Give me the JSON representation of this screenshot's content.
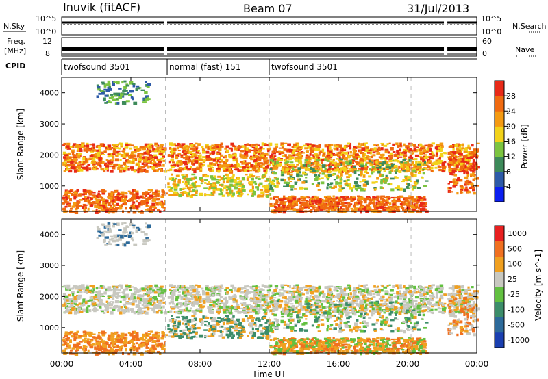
{
  "header": {
    "station": "Inuvik (fitACF)",
    "beam": "Beam 07",
    "date": "31/Jul/2013"
  },
  "summary": {
    "nsky_label": "N.Sky",
    "nsearch_label": "N.Search",
    "nsky_ticks": [
      "10^5",
      "10^0"
    ],
    "nsearch_ticks": [
      "10^5",
      "10^0"
    ],
    "freq_label_1": "Freq.",
    "freq_label_2": "[MHz]",
    "freq_ticks": [
      "12",
      "8"
    ],
    "nave_label": "Nave",
    "nave_ticks": [
      "60",
      "0"
    ],
    "cpid_label": "CPID",
    "modes": [
      {
        "label": "twofsound 3501",
        "start": 0.0,
        "end": 5.9
      },
      {
        "label": "normal (fast) 151",
        "start": 6.1,
        "end": 12.0
      },
      {
        "label": "twofsound 3501",
        "start": 12.0,
        "end": 24.0
      }
    ]
  },
  "x_ticks": [
    "00:00",
    "04:00",
    "08:00",
    "12:00",
    "16:00",
    "20:00",
    "00:00"
  ],
  "x_label": "Time UT",
  "y_ticks": [
    "1000",
    "2000",
    "3000",
    "4000"
  ],
  "y_label": "Slant Range [km]",
  "power_cbar": {
    "label": "Power [dB]",
    "ticks": [
      "4",
      "8",
      "12",
      "16",
      "20",
      "24",
      "28"
    ],
    "colors": [
      "#0b1ff0",
      "#2d5aa8",
      "#3d8a5a",
      "#7cc440",
      "#f2d21a",
      "#f49a12",
      "#f06a10",
      "#e82a18"
    ]
  },
  "velocity_cbar": {
    "label": "Velocity [m s^-1]",
    "ticks": [
      "1000",
      "500",
      "100",
      "25",
      "-25",
      "-100",
      "-500",
      "-1000"
    ],
    "colors": [
      "#1a3fb0",
      "#2d6a9a",
      "#3c8d6a",
      "#62c040",
      "#c8c8c0",
      "#f0a020",
      "#f07020",
      "#e82020"
    ]
  },
  "chart_data": {
    "type": "heatmap",
    "x_range_hours": [
      0,
      24
    ],
    "y_range_km": [
      180,
      4500
    ],
    "data_gaps_hours": [
      [
        5.9,
        6.1
      ],
      [
        22.1,
        22.3
      ]
    ],
    "dashed_time_markers_hours": [
      6.0,
      12.0,
      20.2
    ],
    "power_db_range": [
      0,
      30
    ],
    "velocity_range_ms": [
      -1000,
      1000
    ]
  }
}
